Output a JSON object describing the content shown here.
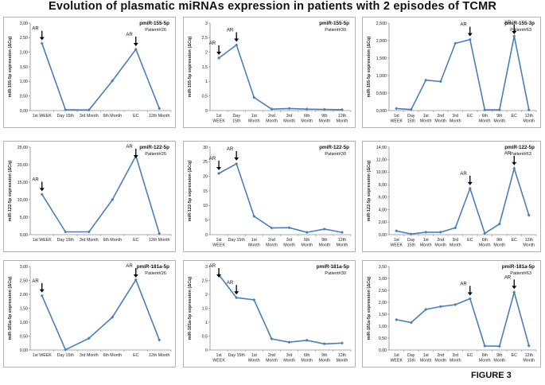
{
  "page": {
    "title": "Evolution of plasmatic miRNAs expression in patients with 2 episodes of TCMR",
    "caption": "FIGURE 3"
  },
  "chart_data": [
    {
      "type": "line",
      "title": "pmiR-155-5p",
      "subtitle": "Patient#26",
      "ylabel": "miR-155-5p expression (ΔCq)",
      "ylim": [
        0,
        3
      ],
      "yticks": [
        "0,00",
        "0,50",
        "1,00",
        "1,50",
        "2,00",
        "2,50",
        "3,00"
      ],
      "categories": [
        [
          "1st WEEK"
        ],
        [
          "Day 15th"
        ],
        [
          "3rd Month"
        ],
        [
          "6th Month"
        ],
        [
          "EC"
        ],
        [
          "12th Month"
        ]
      ],
      "values": [
        2.3,
        0.03,
        0.02,
        1.02,
        2.1,
        0.07
      ],
      "annotations": [
        {
          "index": 0,
          "text": "AR"
        },
        {
          "index": 4,
          "text": "AR"
        }
      ]
    },
    {
      "type": "line",
      "title": "pmiR-155-5p",
      "subtitle": "Patient#30",
      "ylabel": "miR-155-5p expression (ΔCq)",
      "ylim": [
        0,
        3
      ],
      "yticks": [
        "0",
        "0,5",
        "1",
        "1,5",
        "2",
        "2,5",
        "3"
      ],
      "categories": [
        [
          "1st",
          "WEEK"
        ],
        [
          "Day",
          "15th"
        ],
        [
          "1st",
          "Month"
        ],
        [
          "2nd",
          "Month"
        ],
        [
          "3rd",
          "Month"
        ],
        [
          "6th",
          "Month"
        ],
        [
          "9th",
          "Month"
        ],
        [
          "12th",
          "Month"
        ]
      ],
      "values": [
        1.8,
        2.25,
        0.45,
        0.05,
        0.07,
        0.05,
        0.04,
        0.03
      ],
      "annotations": [
        {
          "index": 0,
          "text": "AR"
        },
        {
          "index": 1,
          "text": "AR"
        }
      ]
    },
    {
      "type": "line",
      "title": "pmiR-155-3p",
      "subtitle": "Patient#63",
      "ylabel": "miR-155-5p expression (ΔCq)",
      "ylim": [
        0,
        2500
      ],
      "yticks": [
        "0,000",
        "0,500",
        "1,000",
        "1,500",
        "2,000",
        "2,500"
      ],
      "categories": [
        [
          "1st",
          "WEEK"
        ],
        [
          "Day",
          "15th"
        ],
        [
          "1st",
          "Month"
        ],
        [
          "2nd",
          "Month"
        ],
        [
          "3rd",
          "Month"
        ],
        [
          "EC"
        ],
        [
          "6th",
          "Month"
        ],
        [
          "9th",
          "Month"
        ],
        [
          "EC"
        ],
        [
          "12th",
          "Month"
        ]
      ],
      "values": [
        60,
        30,
        870,
        830,
        1920,
        2030,
        20,
        20,
        2130,
        20
      ],
      "annotations": [
        {
          "index": 5,
          "text": "AR"
        },
        {
          "index": 8,
          "text": "AR"
        }
      ]
    },
    {
      "type": "line",
      "title": "pmiR-122-5p",
      "subtitle": "Patient#26",
      "ylabel": "miR-122-5p expression (ΔCq)",
      "ylim": [
        0,
        25
      ],
      "yticks": [
        "0,00",
        "5,00",
        "10,00",
        "15,00",
        "20,00",
        "25,00"
      ],
      "categories": [
        [
          "1st WEEK"
        ],
        [
          "Day 15th"
        ],
        [
          "3rd Month"
        ],
        [
          "6th Month"
        ],
        [
          "EC"
        ],
        [
          "12th Month"
        ]
      ],
      "values": [
        11.5,
        0.8,
        0.8,
        10,
        22.5,
        0.3
      ],
      "annotations": [
        {
          "index": 0,
          "text": "AR"
        },
        {
          "index": 4,
          "text": "AR"
        }
      ]
    },
    {
      "type": "line",
      "title": "pmiR-122-5p",
      "subtitle": "Patient#30",
      "ylabel": "miR-122-5p expression (ΔCq)",
      "ylim": [
        0,
        30
      ],
      "yticks": [
        "0",
        "5",
        "10",
        "15",
        "20",
        "25",
        "30"
      ],
      "categories": [
        [
          "1st",
          "WEEK"
        ],
        [
          "Day 15th"
        ],
        [
          "1st",
          "Month"
        ],
        [
          "2nd",
          "Month"
        ],
        [
          "3rd",
          "Month"
        ],
        [
          "6th",
          "Month"
        ],
        [
          "9th",
          "Month"
        ],
        [
          "12th",
          "Month"
        ]
      ],
      "values": [
        21,
        24.3,
        6.3,
        2.3,
        2.4,
        0.8,
        1.9,
        0.8
      ],
      "annotations": [
        {
          "index": 0,
          "text": "AR"
        },
        {
          "index": 1,
          "text": "AR"
        }
      ]
    },
    {
      "type": "line",
      "title": "pmiR-122-5p",
      "subtitle": "Patient#63",
      "ylabel": "miR-122-5p expression (ΔCq)",
      "ylim": [
        0,
        14
      ],
      "yticks": [
        "0,00",
        "2,00",
        "4,00",
        "6,00",
        "8,00",
        "10,00",
        "12,00",
        "14,00"
      ],
      "categories": [
        [
          "1st",
          "WEEK"
        ],
        [
          "Day",
          "15th"
        ],
        [
          "1st",
          "Month"
        ],
        [
          "2nd",
          "Month"
        ],
        [
          "3rd",
          "Month"
        ],
        [
          "EC"
        ],
        [
          "6th",
          "Month"
        ],
        [
          "9th",
          "Month"
        ],
        [
          "EC"
        ],
        [
          "12th",
          "Month"
        ]
      ],
      "values": [
        0.6,
        0.1,
        0.4,
        0.4,
        1.1,
        7.4,
        0.2,
        1.7,
        10.6,
        3.1
      ],
      "annotations": [
        {
          "index": 5,
          "text": "AR"
        },
        {
          "index": 8,
          "text": "AR"
        }
      ]
    },
    {
      "type": "line",
      "title": "pmiR-181a-5p",
      "subtitle": "Patient#26",
      "ylabel": "miR-181a-5p expression (ΔCq)",
      "ylim": [
        0,
        3
      ],
      "yticks": [
        "0,00",
        "0,50",
        "1,00",
        "1,50",
        "2,00",
        "2,50",
        "3,00"
      ],
      "categories": [
        [
          "1st WEEK"
        ],
        [
          "Day 15th"
        ],
        [
          "3rd Month"
        ],
        [
          "6th Month"
        ],
        [
          "EC"
        ],
        [
          "12th Month"
        ]
      ],
      "values": [
        1.95,
        0.01,
        0.42,
        1.18,
        2.52,
        0.36
      ],
      "annotations": [
        {
          "index": 0,
          "text": "AR"
        },
        {
          "index": 4,
          "text": "AR"
        }
      ]
    },
    {
      "type": "line",
      "title": "pmiR-181a-5p",
      "subtitle": "Patient#30",
      "ylabel": "miR-181a-5p expression (ΔCq)",
      "ylim": [
        0,
        3
      ],
      "yticks": [
        "0",
        "0,5",
        "1",
        "1,5",
        "2",
        "2,5",
        "3"
      ],
      "categories": [
        [
          "1st",
          "WEEK"
        ],
        [
          "Day 15th"
        ],
        [
          "1st",
          "Month"
        ],
        [
          "2nd",
          "Month"
        ],
        [
          "3rd",
          "Month"
        ],
        [
          "6th",
          "Month"
        ],
        [
          "9th",
          "Month"
        ],
        [
          "12th",
          "Month"
        ]
      ],
      "values": [
        2.7,
        1.88,
        1.8,
        0.4,
        0.28,
        0.35,
        0.22,
        0.25
      ],
      "annotations": [
        {
          "index": 0,
          "text": "AR"
        },
        {
          "index": 1,
          "text": "AR"
        }
      ]
    },
    {
      "type": "line",
      "title": "pmiR-181a-5p",
      "subtitle": "Patient#63",
      "ylabel": "miR-181a-5p expression (ΔCq)",
      "ylim": [
        0,
        3.5
      ],
      "yticks": [
        "0,00",
        "0,50",
        "1,00",
        "1,50",
        "2,00",
        "2,50",
        "3,00",
        "3,50"
      ],
      "categories": [
        [
          "1st",
          "WEEK"
        ],
        [
          "Day",
          "15th"
        ],
        [
          "1st",
          "Month"
        ],
        [
          "2nd",
          "Month"
        ],
        [
          "3rd",
          "Month"
        ],
        [
          "EC"
        ],
        [
          "6th",
          "Month"
        ],
        [
          "9th",
          "Month"
        ],
        [
          "EC"
        ],
        [
          "12th",
          "Month"
        ]
      ],
      "values": [
        1.27,
        1.15,
        1.7,
        1.82,
        1.9,
        2.15,
        0.17,
        0.16,
        2.42,
        0.18
      ],
      "annotations": [
        {
          "index": 5,
          "text": "AR"
        },
        {
          "index": 8,
          "text": "AR"
        }
      ]
    }
  ]
}
